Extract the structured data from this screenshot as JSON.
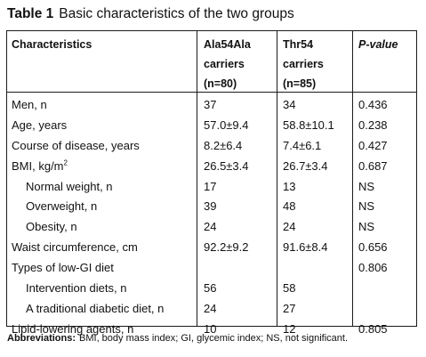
{
  "caption": {
    "label": "Table 1",
    "title": "Basic characteristics of the two groups"
  },
  "table": {
    "headers": {
      "characteristics": "Characteristics",
      "group1": [
        "Ala54Ala",
        "carriers",
        "(n=80)"
      ],
      "group2": [
        "Thr54",
        "carriers",
        "(n=85)"
      ],
      "pvalue": "P-value"
    },
    "rows": [
      {
        "label": "Men, n",
        "g1": "37",
        "g2": "34",
        "p": "0.436",
        "indent": false
      },
      {
        "label": "Age, years",
        "g1": "57.0±9.4",
        "g2": "58.8±10.1",
        "p": "0.238",
        "indent": false
      },
      {
        "label": "Course of disease, years",
        "g1": "8.2±6.4",
        "g2": "7.4±6.1",
        "p": "0.427",
        "indent": false
      },
      {
        "label": "BMI, kg/m",
        "sup": "2",
        "g1": "26.5±3.4",
        "g2": "26.7±3.4",
        "p": "0.687",
        "indent": false
      },
      {
        "label": "Normal weight, n",
        "g1": "17",
        "g2": "13",
        "p": "NS",
        "indent": true
      },
      {
        "label": "Overweight, n",
        "g1": "39",
        "g2": "48",
        "p": "NS",
        "indent": true
      },
      {
        "label": "Obesity, n",
        "g1": "24",
        "g2": "24",
        "p": "NS",
        "indent": true
      },
      {
        "label": "Waist circumference, cm",
        "g1": "92.2±9.2",
        "g2": "91.6±8.4",
        "p": "0.656",
        "indent": false
      },
      {
        "label": "Types of low-GI diet",
        "g1": "",
        "g2": "",
        "p": "0.806",
        "indent": false
      },
      {
        "label": "Intervention diets, n",
        "g1": "56",
        "g2": "58",
        "p": "",
        "indent": true
      },
      {
        "label": "A traditional diabetic diet, n",
        "g1": "24",
        "g2": "27",
        "p": "",
        "indent": true
      },
      {
        "label": "Lipid-lowering agents, n",
        "g1": "10",
        "g2": "12",
        "p": "0.805",
        "indent": false
      }
    ]
  },
  "footnote": {
    "label": "Abbreviations:",
    "text": "BMI, body mass index; GI, glycemic index; NS, not significant."
  }
}
